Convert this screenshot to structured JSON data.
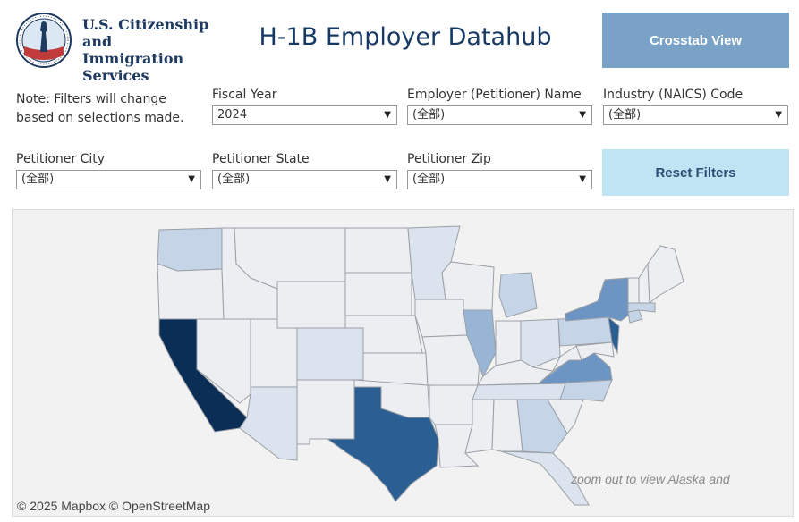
{
  "header": {
    "agency_lines": [
      "U.S. Citizenship",
      "and Immigration",
      "Services"
    ],
    "title": "H-1B Employer Datahub"
  },
  "buttons": {
    "crosstab": "Crosstab View",
    "reset": "Reset Filters"
  },
  "note": "Note: Filters will change based on selections made.",
  "filters": [
    {
      "label": "Fiscal Year",
      "value": "2024"
    },
    {
      "label": "Employer (Petitioner) Name",
      "value": "(全部)"
    },
    {
      "label": "Industry (NAICS) Code",
      "value": "(全部)"
    },
    {
      "label": "Petitioner City",
      "value": "(全部)"
    },
    {
      "label": "Petitioner State",
      "value": "(全部)"
    },
    {
      "label": "Petitioner Zip",
      "value": "(全部)"
    }
  ],
  "map": {
    "attribution": "© 2025 Mapbox  © OpenStreetMap",
    "zoom_note": "zoom out to view Alaska and Hawaii",
    "colors": {
      "background": "#f2f2f2",
      "state_base": "#eceef2",
      "border": "#9a9fa6",
      "darkest": "#0b2e57",
      "dark": "#2b5e92",
      "medium": "#6d95c4",
      "light_medium": "#99b5d5",
      "light": "#c5d4e6",
      "very_light": "#dbe3ee"
    }
  }
}
